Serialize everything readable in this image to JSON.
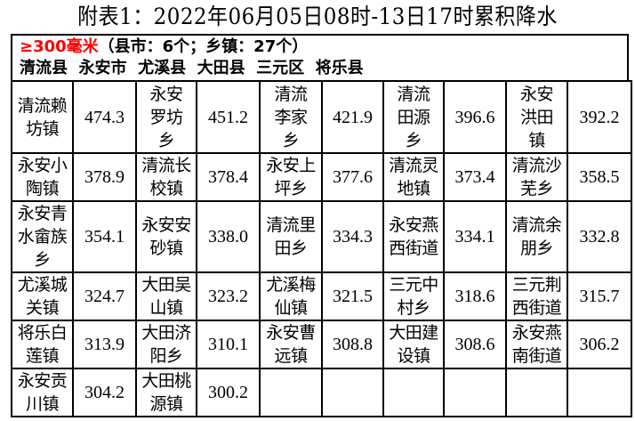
{
  "title": "附表1：2022年06月05日08时-13日17时累积降水",
  "header": {
    "threshold": "≥300毫米",
    "summary": "（县市：6个；乡镇：27个）",
    "counties": "清流县  永安市  尤溪县  大田县  三元区  将乐县"
  },
  "rows": [
    [
      {
        "name": "清流赖\n坊镇",
        "value": "474.3"
      },
      {
        "name": "永安\n罗坊\n乡",
        "value": "451.2"
      },
      {
        "name": "清流\n李家\n乡",
        "value": "421.9"
      },
      {
        "name": "清流\n田源\n乡",
        "value": "396.6"
      },
      {
        "name": "永安\n洪田\n镇",
        "value": "392.2"
      }
    ],
    [
      {
        "name": "永安小\n陶镇",
        "value": "378.9"
      },
      {
        "name": "清流长\n校镇",
        "value": "378.4"
      },
      {
        "name": "永安上\n坪乡",
        "value": "377.6"
      },
      {
        "name": "清流灵\n地镇",
        "value": "373.4"
      },
      {
        "name": "清流沙\n芜乡",
        "value": "358.5"
      }
    ],
    [
      {
        "name": "永安青\n水畲族\n乡",
        "value": "354.1"
      },
      {
        "name": "永安安\n砂镇",
        "value": "338.0"
      },
      {
        "name": "清流里\n田乡",
        "value": "334.3"
      },
      {
        "name": "永安燕\n西街道",
        "value": "334.1"
      },
      {
        "name": "清流余\n朋乡",
        "value": "332.8"
      }
    ],
    [
      {
        "name": "尤溪城\n关镇",
        "value": "324.7"
      },
      {
        "name": "大田吴\n山镇",
        "value": "323.2"
      },
      {
        "name": "尤溪梅\n仙镇",
        "value": "321.5"
      },
      {
        "name": "三元中\n村乡",
        "value": "318.6"
      },
      {
        "name": "三元荆\n西街道",
        "value": "315.7"
      }
    ],
    [
      {
        "name": "将乐白\n莲镇",
        "value": "313.9"
      },
      {
        "name": "大田济\n阳乡",
        "value": "310.1"
      },
      {
        "name": "永安曹\n远镇",
        "value": "308.8"
      },
      {
        "name": "大田建\n设镇",
        "value": "308.6"
      },
      {
        "name": "永安燕\n南街道",
        "value": "306.2"
      }
    ],
    [
      {
        "name": "永安贡\n川镇",
        "value": "304.2"
      },
      {
        "name": "大田桃\n源镇",
        "value": "300.2"
      },
      {
        "name": "",
        "value": ""
      },
      {
        "name": "",
        "value": ""
      },
      {
        "name": "",
        "value": ""
      }
    ]
  ]
}
